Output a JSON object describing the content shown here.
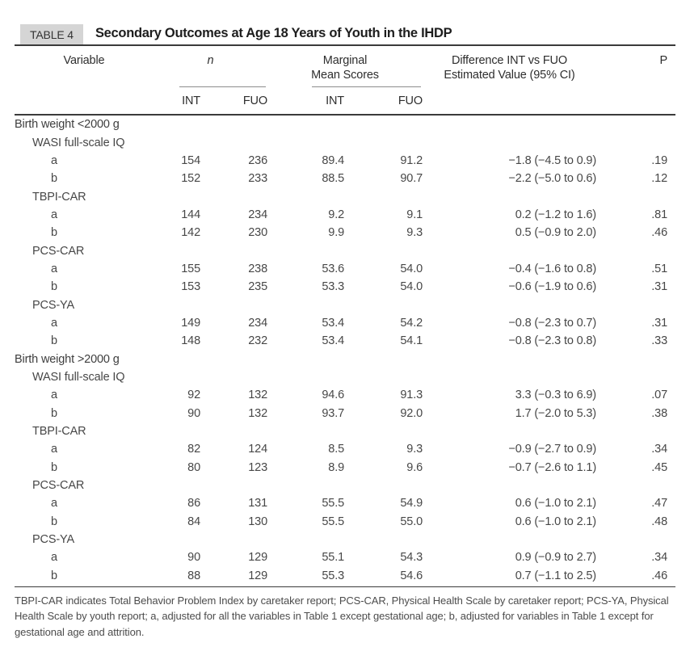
{
  "table": {
    "tag": "TABLE 4",
    "title": "Secondary Outcomes at Age 18 Years of Youth in the IHDP",
    "columns": {
      "variable": "Variable",
      "n_group": "n",
      "marginal_line1": "Marginal",
      "marginal_line2": "Mean Scores",
      "diff_line1": "Difference INT vs FUO",
      "diff_line2": "Estimated Value (95% CI)",
      "p": "P",
      "int": "INT",
      "fuo": "FUO"
    },
    "rows": [
      {
        "type": "section",
        "label": "Birth weight <2000 g"
      },
      {
        "type": "measure",
        "label": "WASI full-scale IQ"
      },
      {
        "type": "data",
        "label": "a",
        "n_int": "154",
        "n_fuo": "236",
        "m_int": "89.4",
        "m_fuo": "91.2",
        "diff": "−1.8 (−4.5 to 0.9)",
        "p": ".19"
      },
      {
        "type": "data",
        "label": "b",
        "n_int": "152",
        "n_fuo": "233",
        "m_int": "88.5",
        "m_fuo": "90.7",
        "diff": "−2.2 (−5.0 to 0.6)",
        "p": ".12"
      },
      {
        "type": "measure",
        "label": "TBPI-CAR"
      },
      {
        "type": "data",
        "label": "a",
        "n_int": "144",
        "n_fuo": "234",
        "m_int": "9.2",
        "m_fuo": "9.1",
        "diff": "0.2 (−1.2 to 1.6)",
        "p": ".81"
      },
      {
        "type": "data",
        "label": "b",
        "n_int": "142",
        "n_fuo": "230",
        "m_int": "9.9",
        "m_fuo": "9.3",
        "diff": "0.5 (−0.9 to 2.0)",
        "p": ".46"
      },
      {
        "type": "measure",
        "label": "PCS-CAR"
      },
      {
        "type": "data",
        "label": "a",
        "n_int": "155",
        "n_fuo": "238",
        "m_int": "53.6",
        "m_fuo": "54.0",
        "diff": "−0.4 (−1.6 to 0.8)",
        "p": ".51"
      },
      {
        "type": "data",
        "label": "b",
        "n_int": "153",
        "n_fuo": "235",
        "m_int": "53.3",
        "m_fuo": "54.0",
        "diff": "−0.6 (−1.9 to 0.6)",
        "p": ".31"
      },
      {
        "type": "measure",
        "label": "PCS-YA"
      },
      {
        "type": "data",
        "label": "a",
        "n_int": "149",
        "n_fuo": "234",
        "m_int": "53.4",
        "m_fuo": "54.2",
        "diff": "−0.8 (−2.3 to 0.7)",
        "p": ".31"
      },
      {
        "type": "data",
        "label": "b",
        "n_int": "148",
        "n_fuo": "232",
        "m_int": "53.4",
        "m_fuo": "54.1",
        "diff": "−0.8 (−2.3 to 0.8)",
        "p": ".33"
      },
      {
        "type": "section",
        "label": "Birth weight >2000 g"
      },
      {
        "type": "measure",
        "label": "WASI full-scale IQ"
      },
      {
        "type": "data",
        "label": "a",
        "n_int": "92",
        "n_fuo": "132",
        "m_int": "94.6",
        "m_fuo": "91.3",
        "diff": "3.3 (−0.3 to 6.9)",
        "p": ".07"
      },
      {
        "type": "data",
        "label": "b",
        "n_int": "90",
        "n_fuo": "132",
        "m_int": "93.7",
        "m_fuo": "92.0",
        "diff": "1.7 (−2.0 to 5.3)",
        "p": ".38"
      },
      {
        "type": "measure",
        "label": "TBPI-CAR"
      },
      {
        "type": "data",
        "label": "a",
        "n_int": "82",
        "n_fuo": "124",
        "m_int": "8.5",
        "m_fuo": "9.3",
        "diff": "−0.9 (−2.7 to 0.9)",
        "p": ".34"
      },
      {
        "type": "data",
        "label": "b",
        "n_int": "80",
        "n_fuo": "123",
        "m_int": "8.9",
        "m_fuo": "9.6",
        "diff": "−0.7 (−2.6 to 1.1)",
        "p": ".45"
      },
      {
        "type": "measure",
        "label": "PCS-CAR"
      },
      {
        "type": "data",
        "label": "a",
        "n_int": "86",
        "n_fuo": "131",
        "m_int": "55.5",
        "m_fuo": "54.9",
        "diff": "0.6 (−1.0 to 2.1)",
        "p": ".47"
      },
      {
        "type": "data",
        "label": "b",
        "n_int": "84",
        "n_fuo": "130",
        "m_int": "55.5",
        "m_fuo": "55.0",
        "diff": "0.6 (−1.0 to 2.1)",
        "p": ".48"
      },
      {
        "type": "measure",
        "label": "PCS-YA"
      },
      {
        "type": "data",
        "label": "a",
        "n_int": "90",
        "n_fuo": "129",
        "m_int": "55.1",
        "m_fuo": "54.3",
        "diff": "0.9 (−0.9 to 2.7)",
        "p": ".34"
      },
      {
        "type": "data",
        "label": "b",
        "n_int": "88",
        "n_fuo": "129",
        "m_int": "55.3",
        "m_fuo": "54.6",
        "diff": "0.7 (−1.1 to 2.5)",
        "p": ".46"
      }
    ],
    "footnote": "TBPI-CAR indicates Total Behavior Problem Index by caretaker report; PCS-CAR, Physical Health Scale by caretaker report; PCS-YA, Physical Health Scale by youth report; a, adjusted for all the variables in Table 1 except gestational age; b, adjusted for variables in Table 1 except for gestational age and attrition.",
    "colors": {
      "tag_background": "#d5d5d5",
      "rule_dark": "#3b3b3b",
      "rule_light": "#8d8d8d",
      "text": "#474747"
    }
  }
}
